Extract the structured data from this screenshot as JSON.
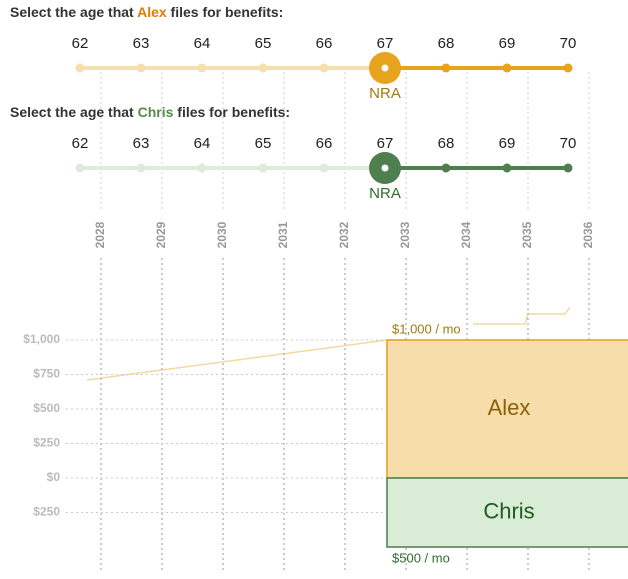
{
  "sliders": [
    {
      "prompt": "Select the age that ",
      "name": "Alex",
      "suffix": " files for benefits:",
      "ages": [
        "62",
        "63",
        "64",
        "65",
        "66",
        "67",
        "68",
        "69",
        "70"
      ],
      "selected": 5,
      "marker": "NRA",
      "light": "#f6dfae",
      "dark": "#e6a31b",
      "name_color": "#e07b00",
      "marker_color": "#a07a10"
    },
    {
      "prompt": "Select the age that ",
      "name": "Chris",
      "suffix": " files for benefits:",
      "ages": [
        "62",
        "63",
        "64",
        "65",
        "66",
        "67",
        "68",
        "69",
        "70"
      ],
      "selected": 5,
      "marker": "NRA",
      "light": "#dcecd8",
      "dark": "#4f7f4f",
      "name_color": "#5a8a4a",
      "marker_color": "#2f6b2f"
    }
  ],
  "years": [
    "2028",
    "2029",
    "2030",
    "2031",
    "2032",
    "2033",
    "2034",
    "2035",
    "2036"
  ],
  "y_axis": {
    "ylim": [
      -250,
      1000
    ],
    "ticks": [
      {
        "value": 1000,
        "label": "$1,000"
      },
      {
        "value": 750,
        "label": "$750"
      },
      {
        "value": 500,
        "label": "$500"
      },
      {
        "value": 250,
        "label": "$250"
      },
      {
        "value": 0,
        "label": "$0"
      },
      {
        "value": -250,
        "label": "$250"
      }
    ]
  },
  "benefits": [
    {
      "name": "Alex",
      "value": 1000,
      "label": "$1,000 / mo",
      "fill": "#f7dda9",
      "stroke": "#e0a21a",
      "text_color": "#8a6108",
      "label_color": "#a07a10"
    },
    {
      "name": "Chris",
      "value": 500,
      "label": "$500 / mo",
      "fill": "#d9edd6",
      "stroke": "#4d7c4d",
      "text_color": "#1f5a1f",
      "label_color": "#2f6b2f"
    }
  ]
}
